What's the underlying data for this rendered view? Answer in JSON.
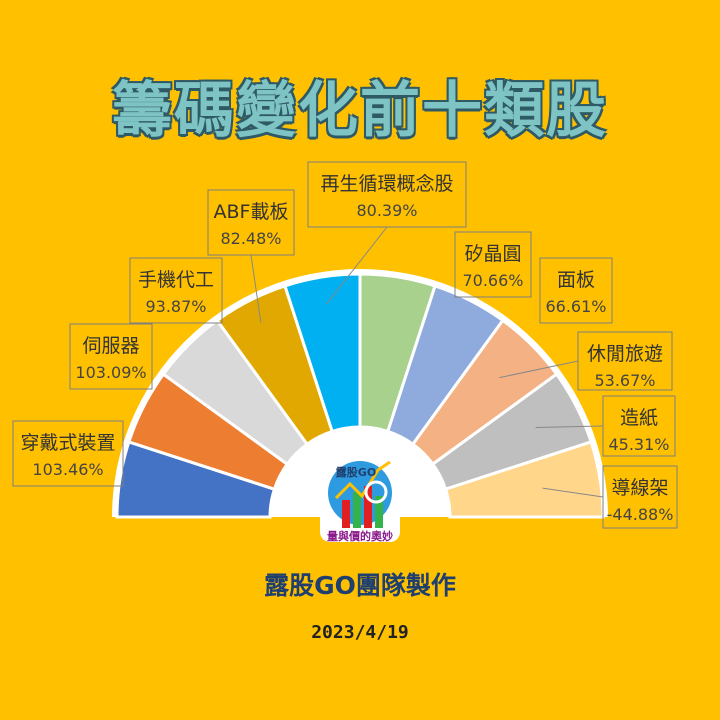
{
  "title": "籌碼變化前十類股",
  "footer": {
    "team": "露股GO團隊製作",
    "date": "2023/4/19"
  },
  "logo": {
    "top_text": "露股GO",
    "bottom_text": "量與價的奧妙"
  },
  "colors": {
    "background": "#FFC000",
    "slice_colors": [
      "#4472C4",
      "#ED7D31",
      "#D9D9D9",
      "#E0A800",
      "#00B0F0",
      "#A9D18E",
      "#8FAADC",
      "#F4B183",
      "#BFBFBF",
      "#FFD68A"
    ]
  },
  "chart_data": {
    "type": "pie",
    "layout": "half-donut",
    "categories": [
      "穿戴式裝置",
      "伺服器",
      "手機代工",
      "ABF載板",
      "再生循環概念股",
      "矽晶圓",
      "面板",
      "休閒旅遊",
      "造紙",
      "導線架"
    ],
    "values": [
      103.46,
      103.09,
      93.87,
      82.48,
      80.39,
      70.66,
      66.61,
      53.67,
      45.31,
      -44.88
    ],
    "value_labels": [
      "103.46%",
      "103.09%",
      "93.87%",
      "82.48%",
      "80.39%",
      "70.66%",
      "66.61%",
      "53.67%",
      "45.31%",
      "-44.88%"
    ],
    "title": "籌碼變化前十類股"
  }
}
